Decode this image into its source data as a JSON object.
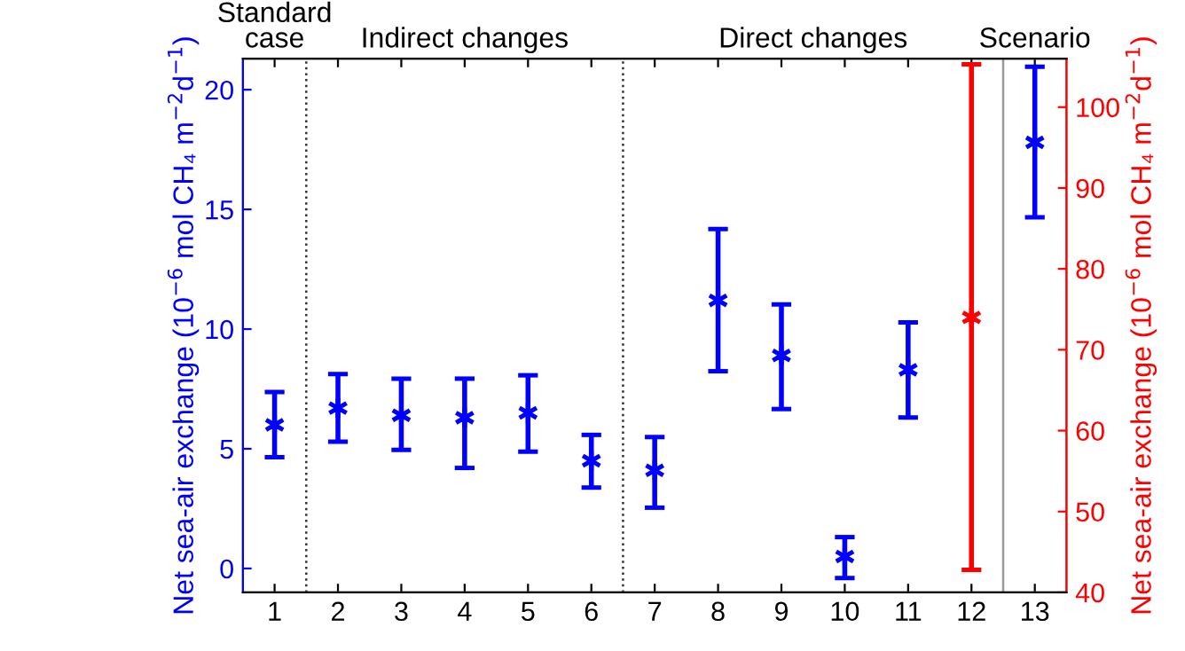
{
  "chart_data": {
    "type": "scatter",
    "ylabel": "Net sea-air exchange (10$^{−6}$ mol CH₄ m$^{−2}$d$^{−1}$)",
    "y2label": "Net sea-air exchange (10$^{−6}$ mol CH₄ m$^{−2}$d$^{−1}$)",
    "annotations": [
      "Standard case",
      "Indirect changes",
      "Direct changes",
      "Scenario"
    ],
    "series": [
      {
        "color": "#0000ff",
        "x": [
          1,
          2,
          3,
          4,
          5,
          6,
          7,
          8,
          9,
          10,
          11,
          13
        ],
        "values": [
          6.0,
          6.7,
          6.4,
          6.3,
          6.5,
          4.5,
          4.1,
          11.2,
          8.9,
          0.5,
          8.3,
          17.8
        ],
        "errors": [
          [
            4.65,
            7.37
          ],
          [
            5.3,
            8.12
          ],
          [
            4.95,
            7.93
          ],
          [
            4.2,
            7.93
          ],
          [
            4.88,
            8.07
          ],
          [
            3.38,
            5.58
          ],
          [
            2.54,
            5.49
          ],
          [
            8.24,
            14.18
          ],
          [
            6.66,
            11.03
          ],
          [
            -0.4,
            1.31
          ],
          [
            6.31,
            10.28
          ],
          [
            14.67,
            20.96
          ]
        ]
      },
      {
        "color": "#ff0000",
        "axis": "y2",
        "x": [
          12
        ],
        "values": [
          74
        ],
        "errors": [
          [
            42.8,
            105.3
          ]
        ]
      }
    ],
    "xlim": [
      0.5,
      13.5
    ],
    "xticks": [
      1,
      2,
      3,
      4,
      5,
      6,
      7,
      8,
      9,
      10,
      11,
      12,
      13
    ],
    "ylim": [
      -1,
      21.3
    ],
    "yticks": [
      0,
      5,
      10,
      15,
      20
    ],
    "y2lim": [
      40,
      106
    ],
    "y2ticks": [
      40,
      50,
      60,
      70,
      80,
      90,
      100
    ],
    "ref_lines": [
      {
        "axis": "x",
        "value": 1.5,
        "color": "#333333",
        "line_style": "dotted"
      },
      {
        "axis": "x",
        "value": 6.5,
        "color": "#333333",
        "line_style": "dotted"
      },
      {
        "axis": "x",
        "value": 12.5,
        "color": "#999999",
        "line_style": "solid"
      }
    ],
    "marker": "cross",
    "line_style": "none",
    "grid": false,
    "legend": false
  }
}
